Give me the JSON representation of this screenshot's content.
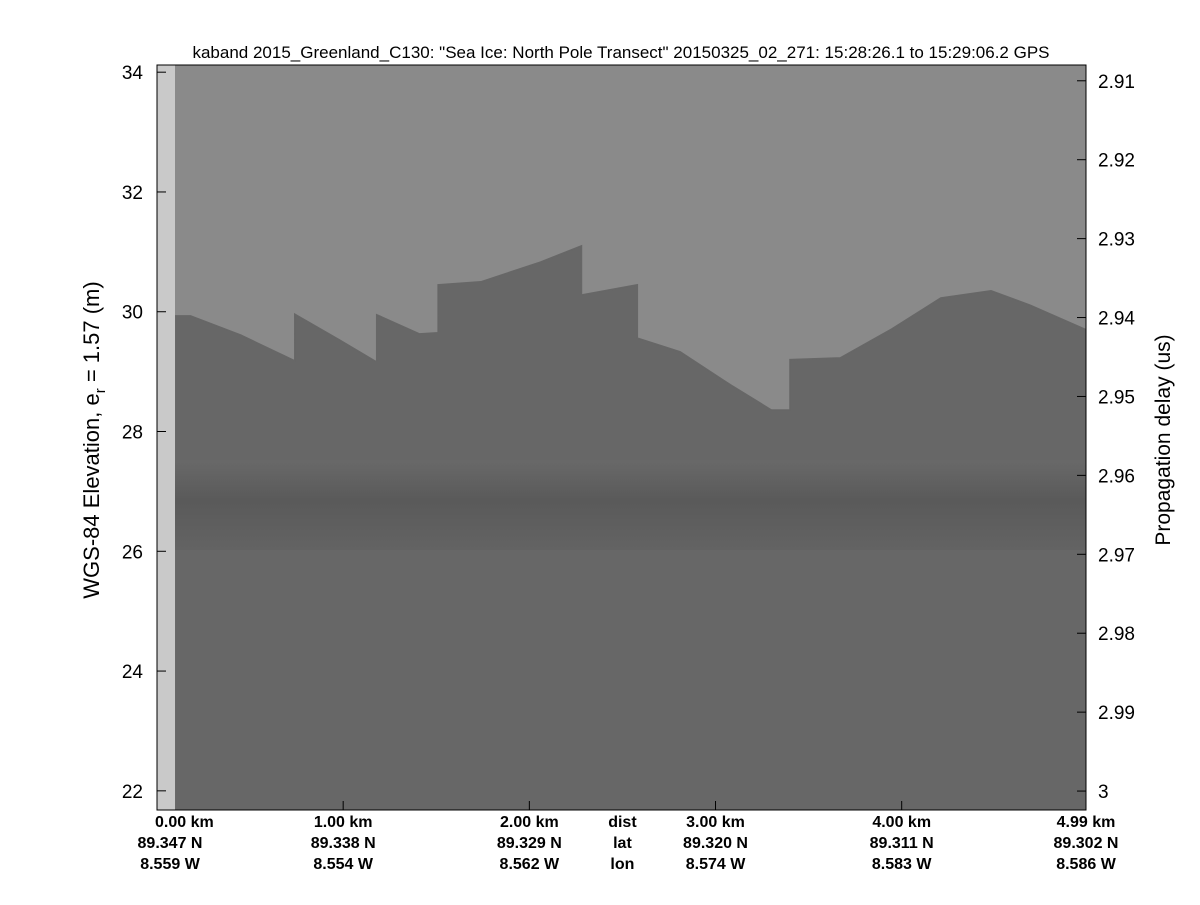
{
  "chart_data": {
    "type": "echogram",
    "title": "kaband 2015_Greenland_C130: \"Sea Ice: North Pole Transect\"  20150325_02_271: 15:28:26.1 to 15:29:06.2 GPS",
    "ylabel": {
      "main": "WGS-84 Elevation, e",
      "sub": "r",
      "rest": " = 1.57 (m)"
    },
    "y2label": "Propagation delay (us)",
    "xlim": [
      0,
      4.99
    ],
    "ylim": [
      21.68,
      34.12
    ],
    "y2lim": [
      3.0024,
      2.908
    ],
    "yticks": [
      22,
      24,
      26,
      28,
      30,
      32,
      34
    ],
    "y2ticks": [
      2.91,
      2.92,
      2.93,
      2.94,
      2.95,
      2.96,
      2.97,
      2.98,
      2.99,
      3
    ],
    "x_row_labels": {
      "value": 2.5,
      "dist": "dist",
      "lat": "lat",
      "lon": "lon"
    },
    "xticks": [
      {
        "value": 0,
        "label": "0.00 km",
        "lat": "89.347 N",
        "lon": "8.559 W"
      },
      {
        "value": 1,
        "label": "1.00 km",
        "lat": "89.338 N",
        "lon": "8.554 W"
      },
      {
        "value": 2,
        "label": "2.00 km",
        "lat": "89.329 N",
        "lon": "8.562 W"
      },
      {
        "value": 3,
        "label": "3.00 km",
        "lat": "89.320 N",
        "lon": "8.574 W"
      },
      {
        "value": 4,
        "label": "4.00 km",
        "lat": "89.311 N",
        "lon": "8.583 W"
      },
      {
        "value": 4.99,
        "label": "4.99 km",
        "lat": "89.302 N",
        "lon": "8.586 W"
      }
    ],
    "surface": {
      "color": "#676767",
      "x": [
        0.097,
        0.18,
        0.45,
        0.74,
        0.74,
        0.98,
        1.18,
        1.18,
        1.41,
        1.51,
        1.51,
        1.74,
        2.06,
        2.28,
        2.28,
        2.58,
        2.58,
        2.81,
        3.08,
        3.3,
        3.4,
        3.4,
        3.67,
        3.94,
        4.21,
        4.48,
        4.69,
        4.99
      ],
      "values": [
        29.93,
        29.93,
        29.61,
        29.18,
        29.96,
        29.53,
        29.16,
        29.95,
        29.63,
        29.65,
        30.45,
        30.5,
        30.83,
        31.1,
        30.28,
        30.45,
        29.56,
        29.33,
        28.78,
        28.36,
        28.36,
        29.2,
        29.23,
        29.7,
        30.23,
        30.35,
        30.11,
        29.7
      ]
    }
  }
}
